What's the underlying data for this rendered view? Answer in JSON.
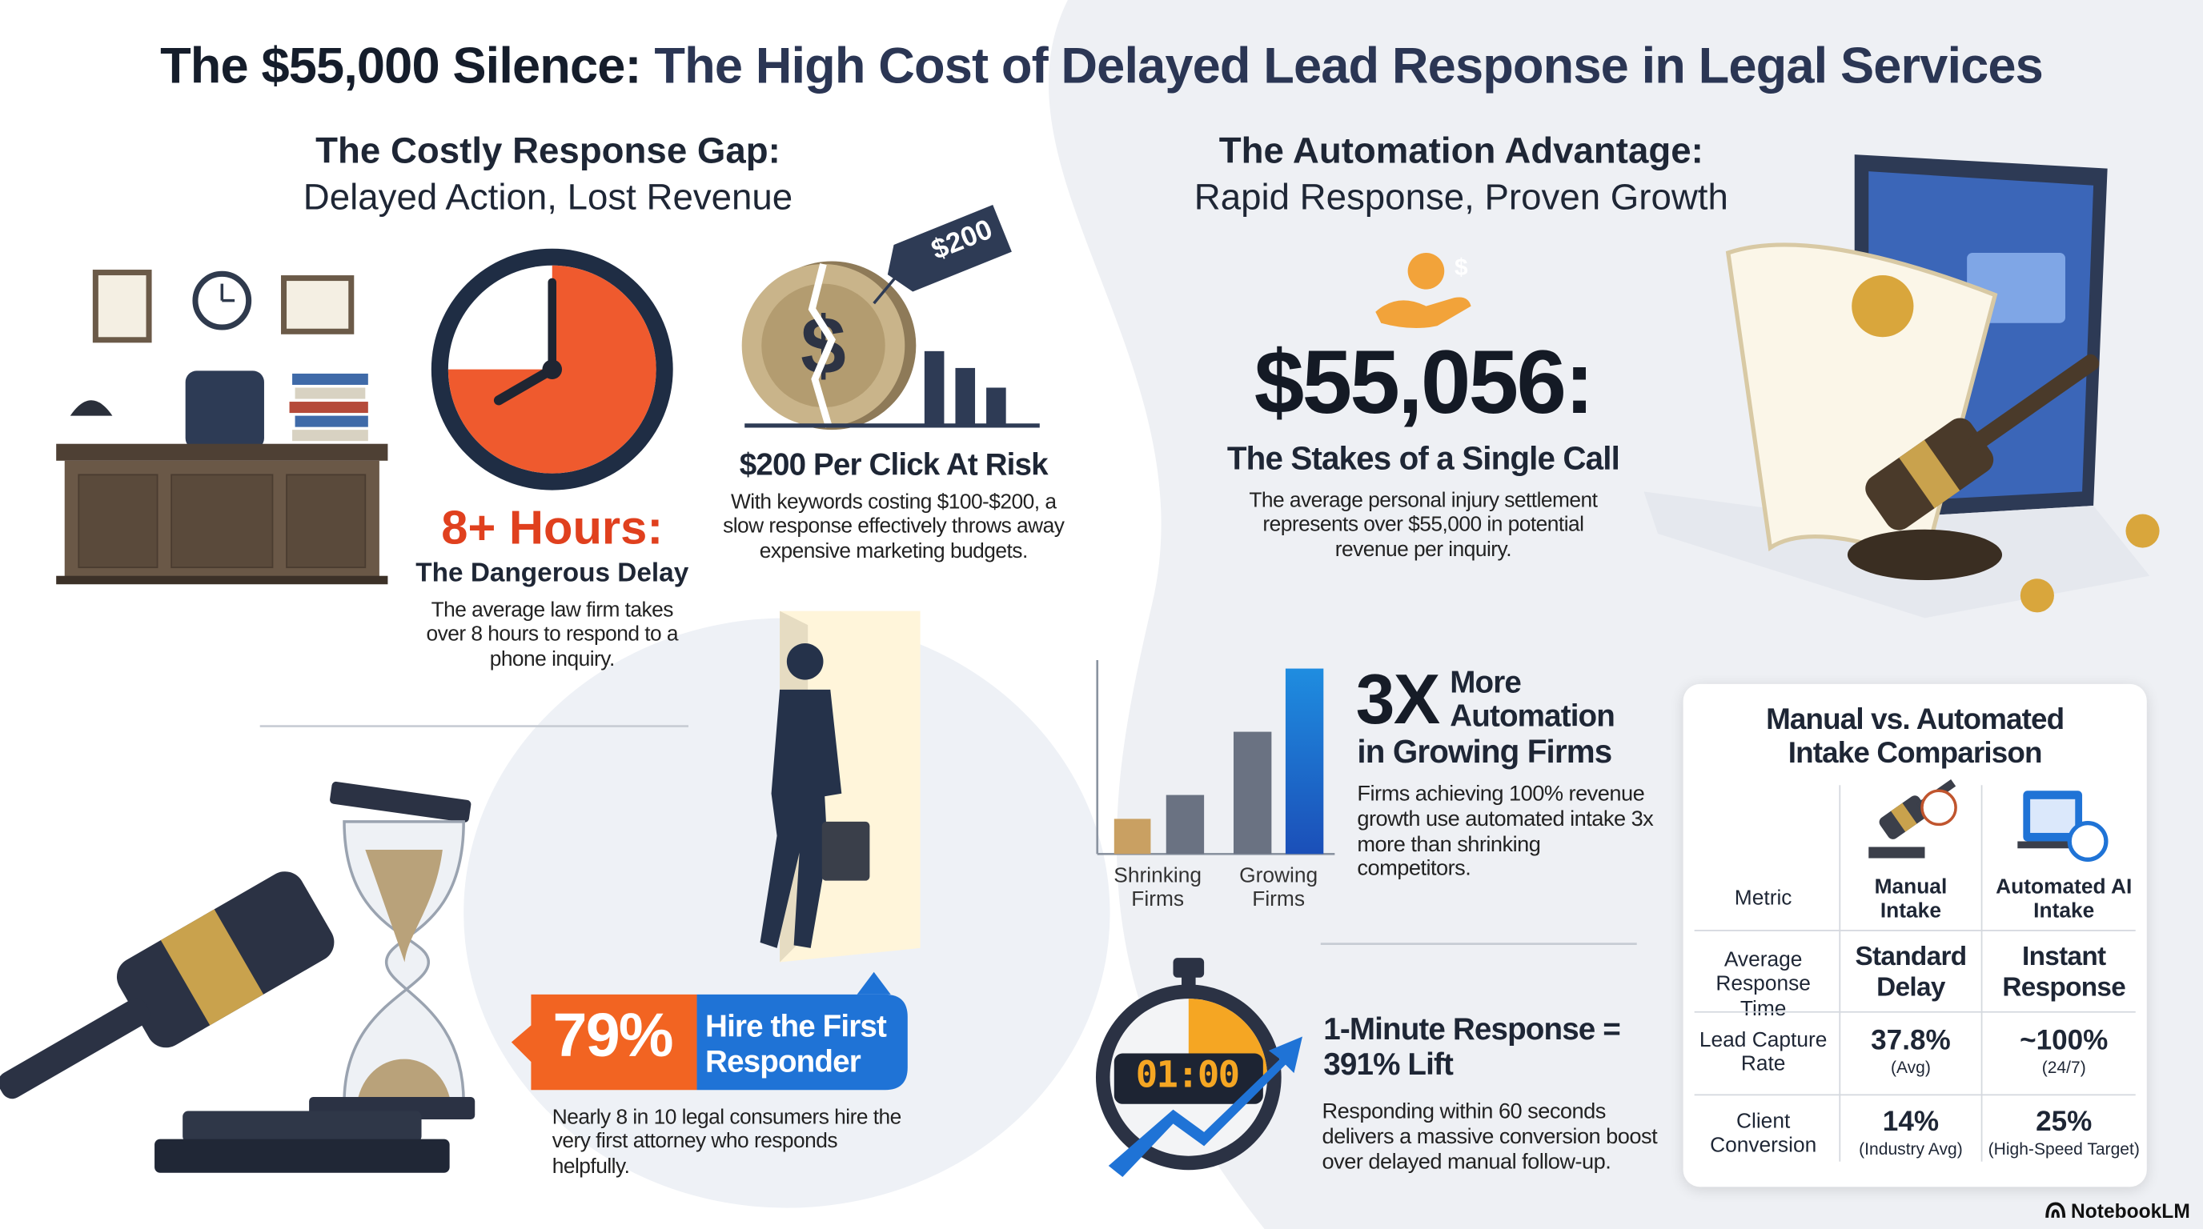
{
  "title": {
    "highlight": "The $55,000 Silence:",
    "rest": "The High Cost of Delayed Lead Response in Legal Services"
  },
  "left": {
    "heading": "The Costly Response Gap:",
    "subheading": "Delayed Action, Lost Revenue",
    "delay": {
      "stat": "8+ Hours:",
      "label": "The Dangerous Delay",
      "text": "The average law firm takes over 8 hours to respond to a phone inquiry."
    },
    "click": {
      "tag": "$200",
      "title": "$200 Per Click At Risk",
      "text": "With keywords costing $100-$200, a slow response effectively throws away expensive marketing budgets."
    },
    "responder": {
      "stat": "79%",
      "label": "Hire the First Responder",
      "text": "Nearly 8 in 10 legal consumers hire the very first attorney who responds helpfully."
    }
  },
  "right": {
    "heading": "The Automation Advantage:",
    "subheading": "Rapid Response, Proven Growth",
    "stakes": {
      "icon": "$",
      "stat": "$55,056:",
      "label": "The Stakes of a Single Call",
      "text": "The average personal injury settlement represents over $55,000 in potential revenue per inquiry."
    },
    "automation": {
      "stat": "3X",
      "stat_label": "More Automation",
      "label": "in Growing Firms",
      "text": "Firms achieving 100% revenue growth use automated intake 3x more than shrinking competitors.",
      "bar_labels": [
        "Shrinking Firms",
        "Growing Firms"
      ]
    },
    "speed": {
      "timer": "01:00",
      "title": "1-Minute Response = 391% Lift",
      "text": "Responding within 60 seconds delivers a massive conversion boost over delayed manual follow-up."
    },
    "table": {
      "title": "Manual vs. Automated Intake Comparison",
      "header": [
        "Metric",
        "Manual Intake",
        "Automated AI Intake"
      ],
      "rows": [
        {
          "metric": "Average Response Time",
          "manual": "Standard Delay",
          "automated": "Instant Response"
        },
        {
          "metric": "Lead Capture Rate",
          "manual": "37.8%",
          "manual_note": "(Avg)",
          "automated": "~100%",
          "automated_note": "(24/7)"
        },
        {
          "metric": "Client Conversion",
          "manual": "14%",
          "manual_note": "(Industry Avg)",
          "automated": "25%",
          "automated_note": "(High-Speed Target)"
        }
      ]
    }
  },
  "footer": {
    "brand": "NotebookLM"
  }
}
